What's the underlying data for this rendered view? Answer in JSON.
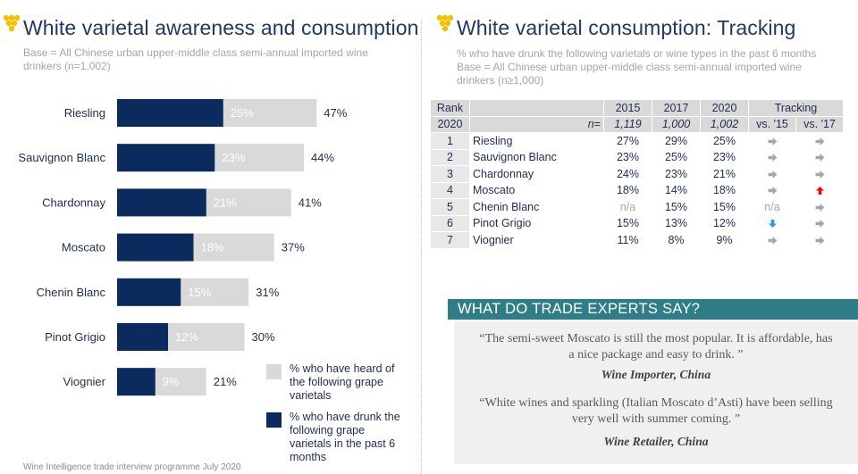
{
  "left": {
    "title": "White varietal awareness and consumption",
    "base": "Base = All Chinese urban upper-middle class semi-annual imported wine drinkers (n=1,002)"
  },
  "right": {
    "title": "White varietal consumption: Tracking",
    "subtitle_line1": "% who have drunk the following varietals or wine types in the past 6 months",
    "subtitle_line2": "Base = All Chinese urban upper-middle class semi-annual imported wine drinkers (n≥1,000)"
  },
  "footer": "Wine Intelligence trade interview programme July 2020",
  "colors": {
    "navy": "#0b2a5e",
    "light_grey": "#d9d9d9",
    "teal": "#2f7e87",
    "arrow_grey": "#a6a6a6",
    "arrow_red": "#ff0000",
    "arrow_blue": "#1fa3dd"
  },
  "chart_data": {
    "type": "bar",
    "orientation": "horizontal",
    "title": "White varietal awareness and consumption",
    "categories": [
      "Riesling",
      "Sauvignon Blanc",
      "Chardonnay",
      "Moscato",
      "Chenin Blanc",
      "Pinot Grigio",
      "Viognier"
    ],
    "series": [
      {
        "name": "% who have heard of the following grape varietals",
        "values": [
          47,
          44,
          41,
          37,
          31,
          30,
          21
        ]
      },
      {
        "name": "% who have drunk the following grape varietals in the past 6 months",
        "values": [
          25,
          23,
          21,
          18,
          15,
          12,
          9
        ]
      }
    ],
    "value_suffix": "%",
    "xlim": [
      0,
      100
    ],
    "legend": "bottom-right"
  },
  "legend": {
    "heard": "% who have heard of the following grape varietals",
    "drunk": "% who have drunk the following grape varietals in the past 6 months"
  },
  "table": {
    "header": {
      "rank": "Rank",
      "rank_year": "2020",
      "n_label": "n=",
      "years": [
        "2015",
        "2017",
        "2020"
      ],
      "n_values": [
        "1,119",
        "1,000",
        "1,002"
      ],
      "tracking": "Tracking",
      "vs15": "vs. '15",
      "vs17": "vs. '17"
    },
    "rows": [
      {
        "rank": "1",
        "name": "Riesling",
        "v2015": "27%",
        "v2017": "29%",
        "v2020": "25%",
        "vs15": "flat",
        "vs17": "flat"
      },
      {
        "rank": "2",
        "name": "Sauvignon Blanc",
        "v2015": "23%",
        "v2017": "25%",
        "v2020": "23%",
        "vs15": "flat",
        "vs17": "flat"
      },
      {
        "rank": "3",
        "name": "Chardonnay",
        "v2015": "24%",
        "v2017": "23%",
        "v2020": "21%",
        "vs15": "flat",
        "vs17": "flat"
      },
      {
        "rank": "4",
        "name": "Moscato",
        "v2015": "18%",
        "v2017": "14%",
        "v2020": "18%",
        "vs15": "flat",
        "vs17": "up"
      },
      {
        "rank": "5",
        "name": "Chenin Blanc",
        "v2015": "n/a",
        "v2017": "15%",
        "v2020": "15%",
        "vs15": "n/a",
        "vs17": "flat"
      },
      {
        "rank": "6",
        "name": "Pinot Grigio",
        "v2015": "15%",
        "v2017": "13%",
        "v2020": "12%",
        "vs15": "down",
        "vs17": "flat"
      },
      {
        "rank": "7",
        "name": "Viognier",
        "v2015": "11%",
        "v2017": "8%",
        "v2020": "9%",
        "vs15": "flat",
        "vs17": "flat"
      }
    ]
  },
  "experts": {
    "heading": "WHAT DO TRADE EXPERTS SAY?",
    "quote1_line1": "“The semi-sweet Moscato is still the most popular. It is affordable, has",
    "quote1_line2": "a nice package and easy to drink. ”",
    "attr1": "Wine Importer, China",
    "quote2_line1": "“White wines and sparkling (Italian Moscato d’Asti) have been selling",
    "quote2_line2": "very well with summer coming. ”",
    "attr2": "Wine Retailer, China"
  }
}
